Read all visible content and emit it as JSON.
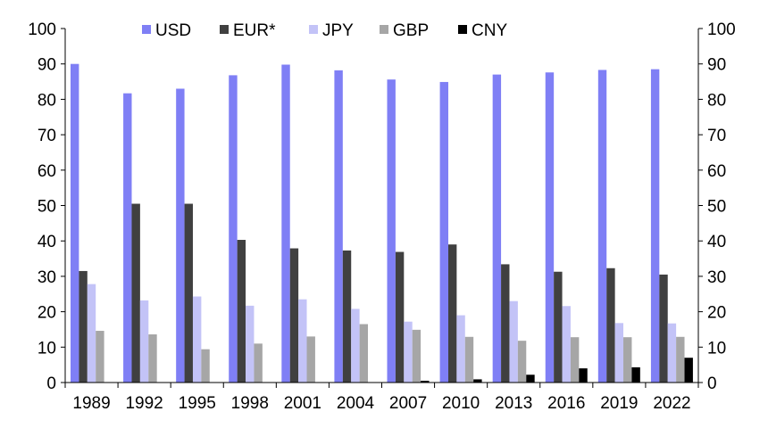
{
  "chart_data": {
    "type": "bar",
    "categories": [
      "1989",
      "1992",
      "1995",
      "1998",
      "2001",
      "2004",
      "2007",
      "2010",
      "2013",
      "2016",
      "2019",
      "2022"
    ],
    "series": [
      {
        "name": "USD",
        "color": "#7f7ff5",
        "values": [
          90.0,
          81.7,
          83.0,
          86.8,
          89.8,
          88.2,
          85.6,
          84.9,
          87.0,
          87.6,
          88.3,
          88.5
        ]
      },
      {
        "name": "EUR*",
        "color": "#404040",
        "values": [
          31.5,
          50.5,
          50.5,
          40.3,
          37.9,
          37.3,
          36.9,
          39.0,
          33.4,
          31.3,
          32.3,
          30.5
        ]
      },
      {
        "name": "JPY",
        "color": "#c3c3f7",
        "values": [
          27.8,
          23.2,
          24.3,
          21.7,
          23.5,
          20.8,
          17.2,
          19.0,
          23.0,
          21.6,
          16.8,
          16.7
        ]
      },
      {
        "name": "GBP",
        "color": "#a6a6a6",
        "values": [
          14.6,
          13.6,
          9.4,
          11.0,
          13.0,
          16.5,
          14.9,
          12.9,
          11.8,
          12.8,
          12.8,
          12.9
        ]
      },
      {
        "name": "CNY",
        "color": "#000000",
        "values": [
          0,
          0,
          0,
          0,
          0,
          0.1,
          0.5,
          0.9,
          2.2,
          4.0,
          4.3,
          7.0
        ]
      }
    ],
    "ylim": [
      0,
      100
    ],
    "yticks": [
      0,
      10,
      20,
      30,
      40,
      50,
      60,
      70,
      80,
      90,
      100
    ],
    "legend_position": "top",
    "grid": false,
    "dual_y_axis": true,
    "title": "",
    "xlabel": "",
    "ylabel": ""
  }
}
